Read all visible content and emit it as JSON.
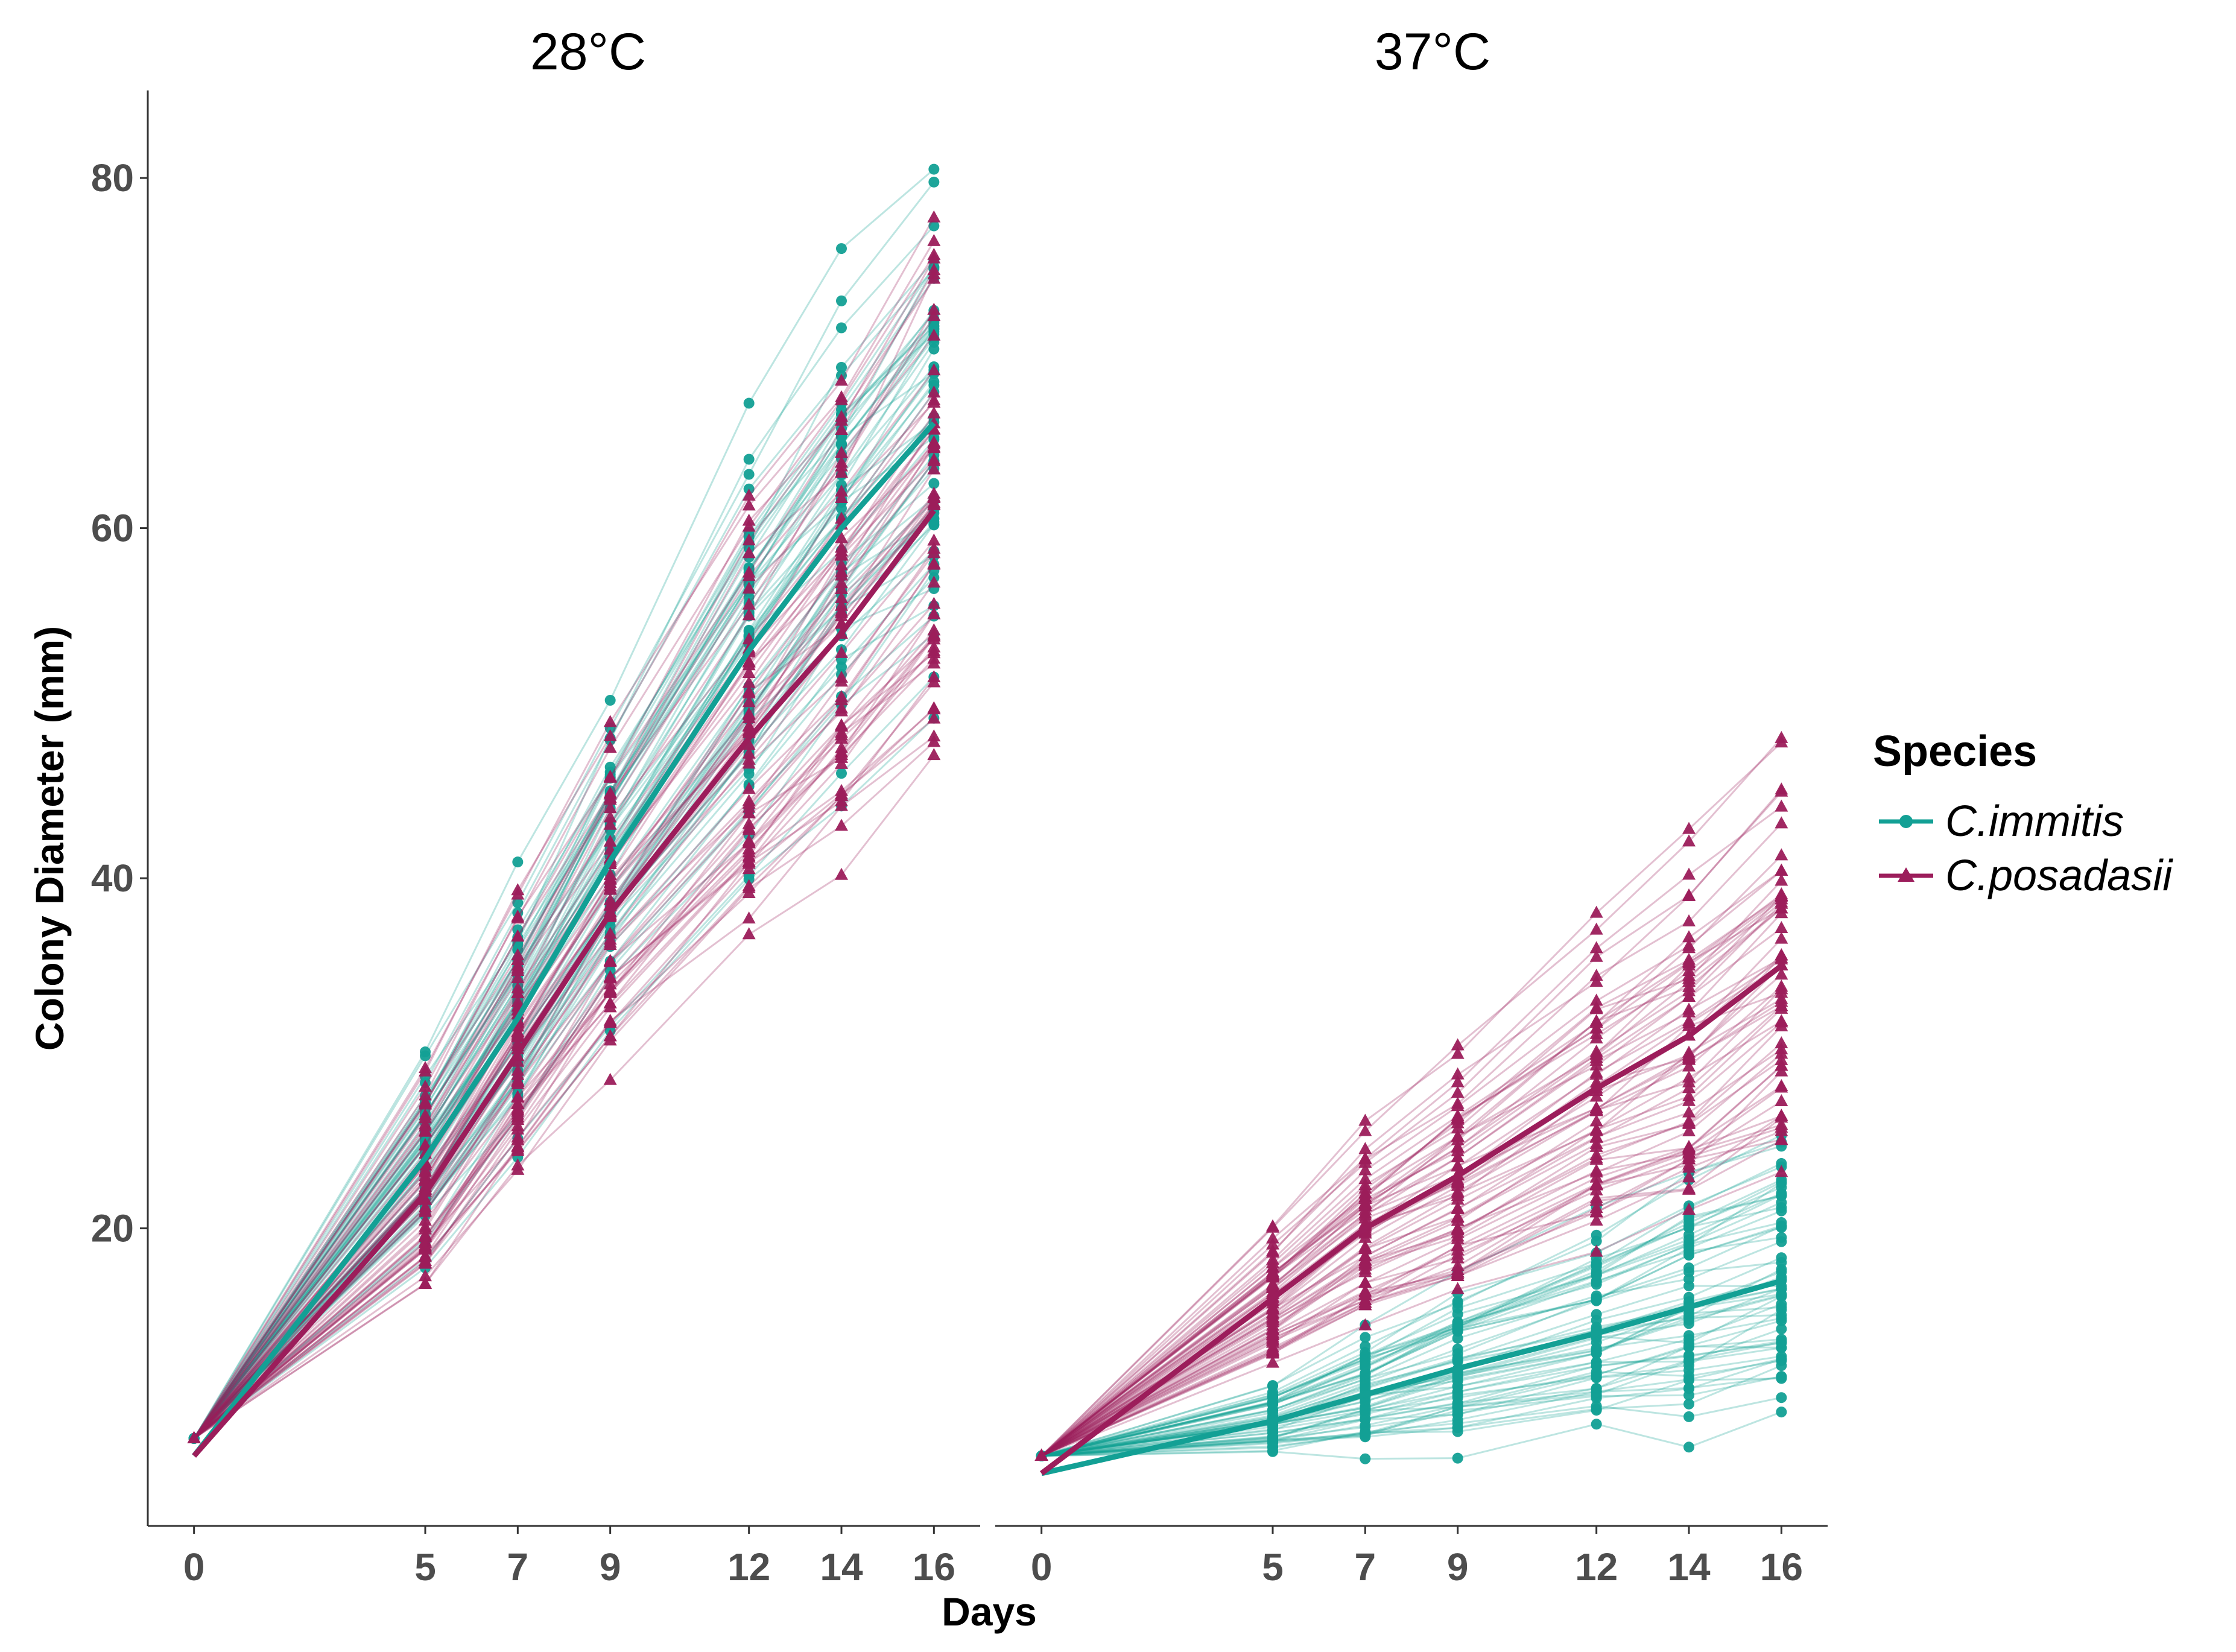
{
  "chart_data": {
    "type": "line",
    "xlabel": "Days",
    "ylabel": "Colony Diameter (mm)",
    "x": [
      0,
      5,
      7,
      9,
      12,
      14,
      16
    ],
    "x_ticks": [
      "0",
      "5",
      "7",
      "9",
      "12",
      "14",
      "16"
    ],
    "y_ticks": [
      "20",
      "40",
      "60",
      "80"
    ],
    "xlim": [
      -1,
      17
    ],
    "ylim": [
      3,
      85
    ],
    "grid": false,
    "legend": {
      "title": "Species",
      "position": "right",
      "entries": [
        {
          "label": "C.immitis",
          "color": "#13A095",
          "marker": "circle"
        },
        {
          "label": "C.posadasii",
          "color": "#9C1D5B",
          "marker": "triangle"
        }
      ]
    },
    "panels": [
      {
        "title": "28°C",
        "series": [
          {
            "name": "C.immitis",
            "color": "#13A095",
            "marker": "circle",
            "mean": [
              7,
              24,
              32,
              41,
              53,
              60,
              66
            ],
            "spread": [
              0,
              4,
              5,
              6,
              8,
              9,
              10
            ]
          },
          {
            "name": "C.posadasii",
            "color": "#9C1D5B",
            "marker": "triangle",
            "mean": [
              7,
              22,
              30,
              38,
              48,
              54,
              61
            ],
            "spread": [
              0,
              4,
              5,
              6,
              8,
              9,
              10
            ]
          }
        ]
      },
      {
        "title": "37°C",
        "series": [
          {
            "name": "C.immitis",
            "color": "#13A095",
            "marker": "circle",
            "mean": [
              6,
              9,
              10.5,
              12,
              14,
              15.5,
              17
            ],
            "spread": [
              0,
              1.5,
              2.5,
              3.5,
              4.5,
              5.5,
              6
            ]
          },
          {
            "name": "C.posadasii",
            "color": "#9C1D5B",
            "marker": "triangle",
            "mean": [
              6,
              16,
              20,
              23,
              28,
              31,
              35
            ],
            "spread": [
              0,
              2.5,
              3.5,
              4.5,
              6,
              7,
              8
            ]
          }
        ]
      }
    ]
  }
}
